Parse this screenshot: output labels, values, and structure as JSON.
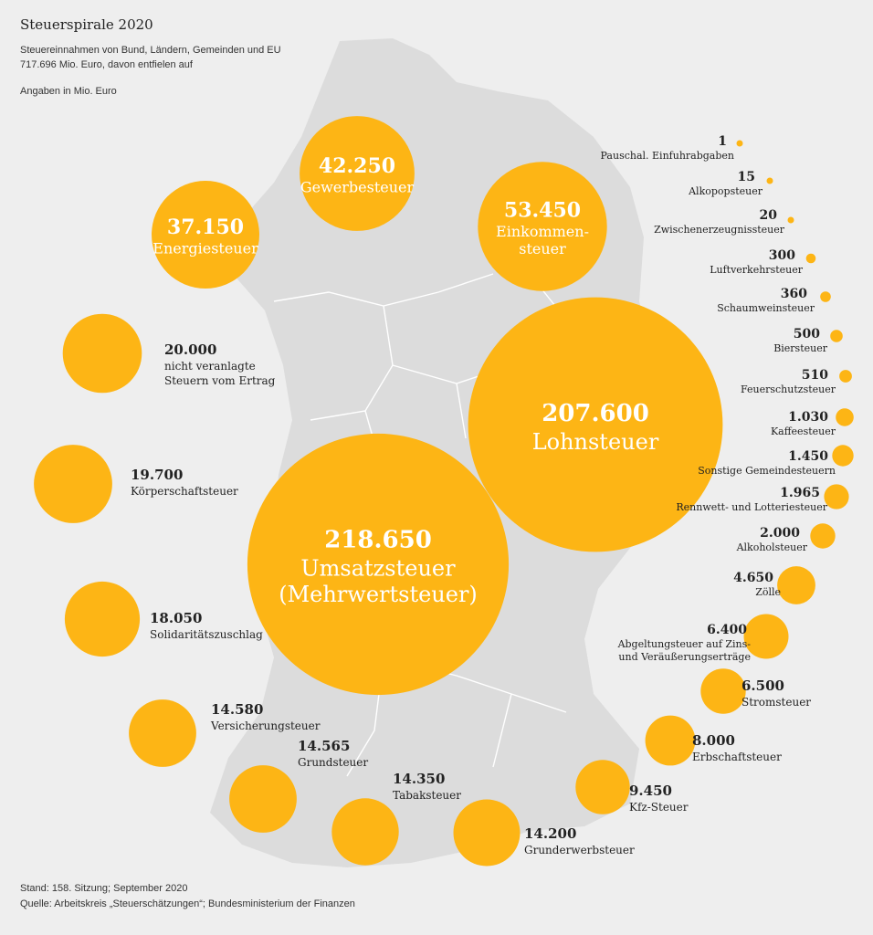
{
  "title": "Steuerspirale 2020",
  "subtitle_line1": "Steuereinnahmen von Bund, Ländern, Gemeinden und EU",
  "subtitle_line2": "717.696 Mio. Euro, davon entfielen auf",
  "unit_note": "Angaben in Mio. Euro",
  "footer_line1": "Stand: 158. Sitzung; September 2020",
  "footer_line2": "Quelle: Arbeitskreis „Steuerschätzungen“; Bundesministerium der Finanzen",
  "colors": {
    "bubble": "#FDB515",
    "map": "#dcdcdc",
    "background": "#eeeeee"
  },
  "chart_data": {
    "type": "bubble",
    "title": "Steuerspirale 2020",
    "unit": "Mio. Euro",
    "total": 717696,
    "items": [
      {
        "value_label": "218.650",
        "value": 218650,
        "label": "Umsatzsteuer (Mehrwertsteuer)",
        "label_lines": [
          "Umsatzsteuer",
          "(Mehrwertsteuer)"
        ],
        "label_position": "inside"
      },
      {
        "value_label": "207.600",
        "value": 207600,
        "label": "Lohnsteuer",
        "label_lines": [
          "Lohnsteuer"
        ],
        "label_position": "inside"
      },
      {
        "value_label": "53.450",
        "value": 53450,
        "label": "Einkommensteuer",
        "label_lines": [
          "Einkommen-",
          "steuer"
        ],
        "label_position": "inside"
      },
      {
        "value_label": "42.250",
        "value": 42250,
        "label": "Gewerbesteuer",
        "label_lines": [
          "Gewerbesteuer"
        ],
        "label_position": "inside"
      },
      {
        "value_label": "37.150",
        "value": 37150,
        "label": "Energiesteuer",
        "label_lines": [
          "Energiesteuer"
        ],
        "label_position": "inside"
      },
      {
        "value_label": "20.000",
        "value": 20000,
        "label": "nicht veranlagte Steuern vom Ertrag",
        "label_lines": [
          "nicht veranlagte",
          "Steuern vom Ertrag"
        ],
        "label_position": "right"
      },
      {
        "value_label": "19.700",
        "value": 19700,
        "label": "Körperschaftsteuer",
        "label_lines": [
          "Körperschaftsteuer"
        ],
        "label_position": "right"
      },
      {
        "value_label": "18.050",
        "value": 18050,
        "label": "Solidaritätszuschlag",
        "label_lines": [
          "Solidaritätszuschlag"
        ],
        "label_position": "right"
      },
      {
        "value_label": "14.580",
        "value": 14580,
        "label": "Versicherungsteuer",
        "label_lines": [
          "Versicherungsteuer"
        ],
        "label_position": "right"
      },
      {
        "value_label": "14.565",
        "value": 14565,
        "label": "Grundsteuer",
        "label_lines": [
          "Grundsteuer"
        ],
        "label_position": "above-right"
      },
      {
        "value_label": "14.350",
        "value": 14350,
        "label": "Tabaksteuer",
        "label_lines": [
          "Tabaksteuer"
        ],
        "label_position": "above-right"
      },
      {
        "value_label": "14.200",
        "value": 14200,
        "label": "Grunderwerbsteuer",
        "label_lines": [
          "Grunderwerbsteuer"
        ],
        "label_position": "right"
      },
      {
        "value_label": "9.450",
        "value": 9450,
        "label": "Kfz-Steuer",
        "label_lines": [
          "Kfz-Steuer"
        ],
        "label_position": "right"
      },
      {
        "value_label": "8.000",
        "value": 8000,
        "label": "Erbschaftsteuer",
        "label_lines": [
          "Erbschaftsteuer"
        ],
        "label_position": "right"
      },
      {
        "value_label": "6.500",
        "value": 6500,
        "label": "Stromsteuer",
        "label_lines": [
          "Stromsteuer"
        ],
        "label_position": "right"
      },
      {
        "value_label": "6.400",
        "value": 6400,
        "label": "Abgeltungsteuer auf Zins- und Veräußerungserträge",
        "label_lines": [
          "Abgeltungsteuer auf Zins-",
          "und Veräußerungserträge"
        ],
        "label_position": "left"
      },
      {
        "value_label": "4.650",
        "value": 4650,
        "label": "Zölle",
        "label_lines": [
          "Zölle"
        ],
        "label_position": "left"
      },
      {
        "value_label": "2.000",
        "value": 2000,
        "label": "Alkoholsteuer",
        "label_lines": [
          "Alkoholsteuer"
        ],
        "label_position": "left"
      },
      {
        "value_label": "1.965",
        "value": 1965,
        "label": "Rennwett- und Lotteriesteuer",
        "label_lines": [
          "Rennwett- und Lotteriesteuer"
        ],
        "label_position": "left"
      },
      {
        "value_label": "1.450",
        "value": 1450,
        "label": "Sonstige Gemeindesteuern",
        "label_lines": [
          "Sonstige Gemeindesteuern"
        ],
        "label_position": "left"
      },
      {
        "value_label": "1.030",
        "value": 1030,
        "label": "Kaffeesteuer",
        "label_lines": [
          "Kaffeesteuer"
        ],
        "label_position": "left"
      },
      {
        "value_label": "510",
        "value": 510,
        "label": "Feuerschutzsteuer",
        "label_lines": [
          "Feuerschutzsteuer"
        ],
        "label_position": "left"
      },
      {
        "value_label": "500",
        "value": 500,
        "label": "Biersteuer",
        "label_lines": [
          "Biersteuer"
        ],
        "label_position": "left"
      },
      {
        "value_label": "360",
        "value": 360,
        "label": "Schaumweinsteuer",
        "label_lines": [
          "Schaumweinsteuer"
        ],
        "label_position": "left"
      },
      {
        "value_label": "300",
        "value": 300,
        "label": "Luftverkehrsteuer",
        "label_lines": [
          "Luftverkehrsteuer"
        ],
        "label_position": "left"
      },
      {
        "value_label": "20",
        "value": 20,
        "label": "Zwischenerzeugnissteuer",
        "label_lines": [
          "Zwischenerzeugnissteuer"
        ],
        "label_position": "left"
      },
      {
        "value_label": "15",
        "value": 15,
        "label": "Alkopopsteuer",
        "label_lines": [
          "Alkopopsteuer"
        ],
        "label_position": "left"
      },
      {
        "value_label": "1",
        "value": 1,
        "label": "Pauschal. Einfuhrabgaben",
        "label_lines": [
          "Pauschal. Einfuhrabgaben"
        ],
        "label_position": "left"
      }
    ]
  }
}
